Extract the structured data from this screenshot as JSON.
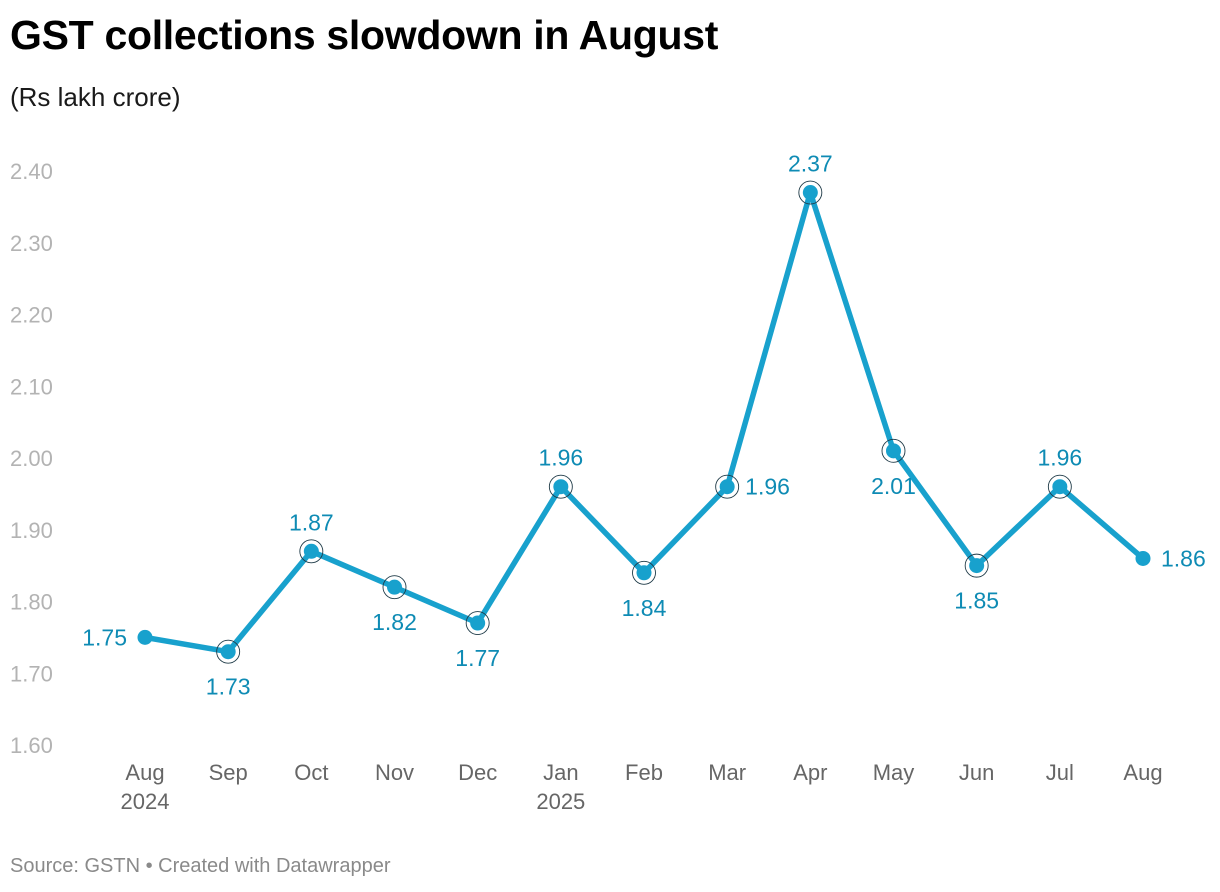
{
  "chart_data": {
    "type": "line",
    "title": "GST collections slowdown in August",
    "subtitle": "(Rs lakh crore)",
    "categories": [
      "Aug",
      "Sep",
      "Oct",
      "Nov",
      "Dec",
      "Jan",
      "Feb",
      "Mar",
      "Apr",
      "May",
      "Jun",
      "Jul",
      "Aug"
    ],
    "category_years": [
      "2024",
      "",
      "",
      "",
      "",
      "2025",
      "",
      "",
      "",
      "",
      "",
      "",
      ""
    ],
    "series": [
      {
        "name": "GST collections",
        "values": [
          1.75,
          1.73,
          1.87,
          1.82,
          1.77,
          1.96,
          1.84,
          1.96,
          2.37,
          2.01,
          1.85,
          1.96,
          1.86
        ],
        "labels": [
          "1.75",
          "1.73",
          "1.87",
          "1.82",
          "1.77",
          "1.96",
          "1.84",
          "1.96",
          "2.37",
          "2.01",
          "1.85",
          "1.96",
          "1.86"
        ],
        "label_placement": [
          "left",
          "below",
          "above",
          "below",
          "below",
          "above",
          "below",
          "right",
          "above",
          "below",
          "below",
          "above",
          "right"
        ]
      }
    ],
    "ylim": [
      1.6,
      2.4
    ],
    "yticks": [
      1.6,
      1.7,
      1.8,
      1.9,
      2.0,
      2.1,
      2.2,
      2.3,
      2.4
    ],
    "ytick_labels": [
      "1.60",
      "1.70",
      "1.80",
      "1.90",
      "2.00",
      "2.10",
      "2.20",
      "2.30",
      "2.40"
    ],
    "xlabel": "",
    "ylabel": "",
    "grid": false,
    "legend": "none"
  },
  "footer": {
    "text": "Source: GSTN • Created with Datawrapper"
  },
  "colors": {
    "line": "#18a1cd",
    "label": "#0e8bb4",
    "axis_text": "#b3b3b3",
    "x_text": "#666666",
    "footer": "#8a8a8a"
  }
}
